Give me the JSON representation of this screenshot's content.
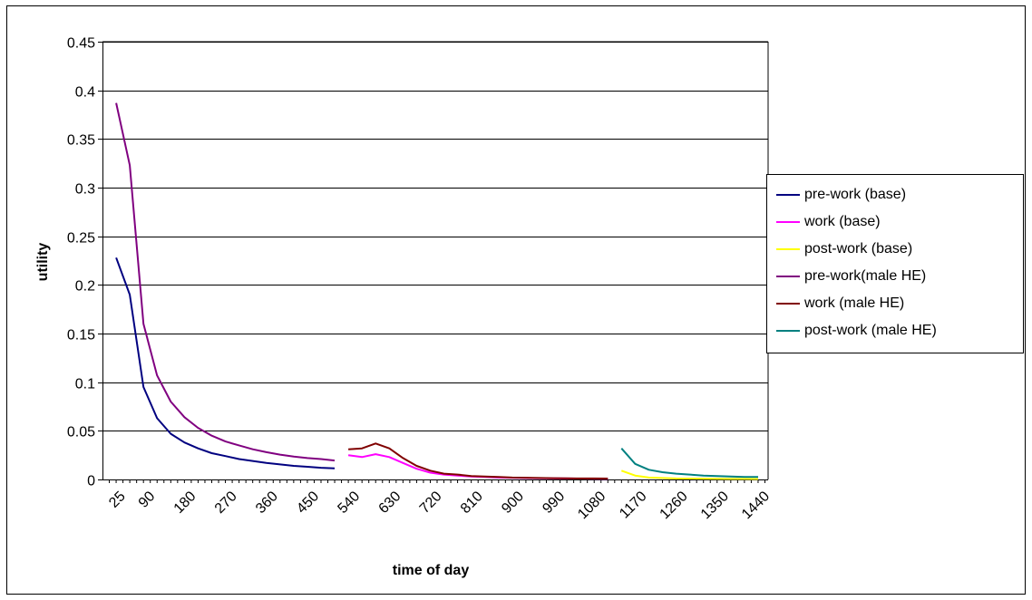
{
  "chart_data": {
    "type": "line",
    "title": "",
    "xlabel": "time of day",
    "ylabel": "utility",
    "ylim": [
      0,
      0.45
    ],
    "y_ticks": [
      "0",
      "0.05",
      "0.1",
      "0.15",
      "0.2",
      "0.25",
      "0.3",
      "0.35",
      "0.4",
      "0.45"
    ],
    "x_tick_labels": [
      "25",
      "90",
      "180",
      "270",
      "360",
      "450",
      "540",
      "630",
      "720",
      "810",
      "900",
      "990",
      "1080",
      "1170",
      "1260",
      "1350",
      "1440"
    ],
    "grid": "horizontal",
    "legend_position": "right",
    "series": [
      {
        "name": "pre-work (base)",
        "color": "#000080",
        "x": [
          30,
          60,
          90,
          120,
          150,
          180,
          210,
          240,
          270,
          300,
          330,
          360,
          390,
          420,
          450,
          480,
          510
        ],
        "values": [
          0.228,
          0.19,
          0.095,
          0.063,
          0.047,
          0.038,
          0.032,
          0.027,
          0.024,
          0.021,
          0.019,
          0.017,
          0.0155,
          0.014,
          0.013,
          0.012,
          0.0115
        ]
      },
      {
        "name": "work (base)",
        "color": "#ff00ff",
        "x": [
          540,
          570,
          600,
          630,
          660,
          690,
          720,
          750,
          780,
          810,
          840,
          870,
          900,
          930,
          960,
          990,
          1020,
          1050,
          1080,
          1110
        ],
        "values": [
          0.025,
          0.023,
          0.026,
          0.023,
          0.017,
          0.011,
          0.007,
          0.005,
          0.004,
          0.003,
          0.0025,
          0.002,
          0.0018,
          0.0015,
          0.0013,
          0.0012,
          0.001,
          0.0009,
          0.0008,
          0.0007
        ]
      },
      {
        "name": "post-work (base)",
        "color": "#ffff00",
        "x": [
          1140,
          1170,
          1200,
          1230,
          1260,
          1290,
          1320,
          1350,
          1380,
          1410,
          1440
        ],
        "values": [
          0.009,
          0.004,
          0.002,
          0.0015,
          0.001,
          0.0009,
          0.0008,
          0.0007,
          0.0006,
          0.0006,
          0.0005
        ]
      },
      {
        "name": "pre-work(male HE)",
        "color": "#800080",
        "x": [
          30,
          60,
          90,
          120,
          150,
          180,
          210,
          240,
          270,
          300,
          330,
          360,
          390,
          420,
          450,
          480,
          510
        ],
        "values": [
          0.387,
          0.323,
          0.16,
          0.107,
          0.08,
          0.064,
          0.053,
          0.045,
          0.039,
          0.035,
          0.031,
          0.028,
          0.0255,
          0.0235,
          0.022,
          0.021,
          0.0195
        ]
      },
      {
        "name": "work (male HE)",
        "color": "#800000",
        "x": [
          540,
          570,
          600,
          630,
          660,
          690,
          720,
          750,
          780,
          810,
          840,
          870,
          900,
          930,
          960,
          990,
          1020,
          1050,
          1080,
          1110
        ],
        "values": [
          0.031,
          0.032,
          0.037,
          0.032,
          0.022,
          0.014,
          0.009,
          0.006,
          0.005,
          0.0035,
          0.003,
          0.0025,
          0.002,
          0.0018,
          0.0015,
          0.0013,
          0.0012,
          0.001,
          0.001,
          0.0009
        ]
      },
      {
        "name": "post-work (male HE)",
        "color": "#008080",
        "x": [
          1140,
          1170,
          1200,
          1230,
          1260,
          1290,
          1320,
          1350,
          1380,
          1410,
          1440
        ],
        "values": [
          0.032,
          0.016,
          0.01,
          0.0075,
          0.006,
          0.005,
          0.004,
          0.0035,
          0.003,
          0.0025,
          0.0025
        ]
      }
    ]
  }
}
